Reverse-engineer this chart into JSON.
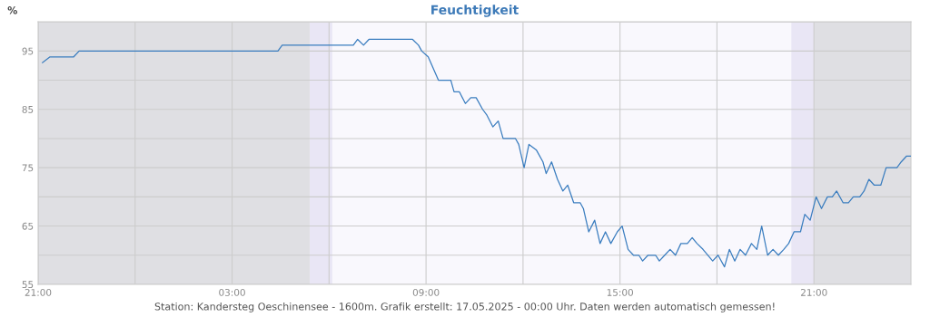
{
  "chart_data": {
    "type": "line",
    "title": "Feuchtigkeit",
    "ylabel": "%",
    "annotations": [
      "Station: Kandersteg Oeschinensee - 1600m. Grafik erstellt: 17.05.2025 - 00:00 Uhr. Daten werden automatisch gemessen!"
    ],
    "series": [
      {
        "color": "#3a7dbf",
        "x": [
          "2025-05-15T21:08",
          "2025-05-15T21:22",
          "2025-05-15T22:06",
          "2025-05-15T22:16",
          "2025-05-16T04:25",
          "2025-05-16T04:33",
          "2025-05-16T06:45",
          "2025-05-16T06:53",
          "2025-05-16T07:04",
          "2025-05-16T07:14",
          "2025-05-16T08:35",
          "2025-05-16T08:46",
          "2025-05-16T08:52",
          "2025-05-16T09:04",
          "2025-05-16T09:23",
          "2025-05-16T09:46",
          "2025-05-16T09:52",
          "2025-05-16T10:02",
          "2025-05-16T10:13",
          "2025-05-16T10:23",
          "2025-05-16T10:33",
          "2025-05-16T10:45",
          "2025-05-16T10:53",
          "2025-05-16T11:04",
          "2025-05-16T11:14",
          "2025-05-16T11:23",
          "2025-05-16T11:46",
          "2025-05-16T11:52",
          "2025-05-16T12:02",
          "2025-05-16T12:11",
          "2025-05-16T12:25",
          "2025-05-16T12:37",
          "2025-05-16T12:43",
          "2025-05-16T12:53",
          "2025-05-16T13:04",
          "2025-05-16T13:14",
          "2025-05-16T13:23",
          "2025-05-16T13:34",
          "2025-05-16T13:46",
          "2025-05-16T13:52",
          "2025-05-16T14:02",
          "2025-05-16T14:13",
          "2025-05-16T14:23",
          "2025-05-16T14:33",
          "2025-05-16T14:43",
          "2025-05-16T14:55",
          "2025-05-16T15:04",
          "2025-05-16T15:15",
          "2025-05-16T15:25",
          "2025-05-16T15:35",
          "2025-05-16T15:42",
          "2025-05-16T15:52",
          "2025-05-16T16:06",
          "2025-05-16T16:13",
          "2025-05-16T16:23",
          "2025-05-16T16:33",
          "2025-05-16T16:43",
          "2025-05-16T16:53",
          "2025-05-16T17:05",
          "2025-05-16T17:14",
          "2025-05-16T17:23",
          "2025-05-16T17:34",
          "2025-05-16T17:52",
          "2025-05-16T18:02",
          "2025-05-16T18:14",
          "2025-05-16T18:23",
          "2025-05-16T18:33",
          "2025-05-16T18:43",
          "2025-05-16T18:53",
          "2025-05-16T19:04",
          "2025-05-16T19:14",
          "2025-05-16T19:23",
          "2025-05-16T19:34",
          "2025-05-16T19:44",
          "2025-05-16T19:54",
          "2025-05-16T20:04",
          "2025-05-16T20:13",
          "2025-05-16T20:23",
          "2025-05-16T20:35",
          "2025-05-16T20:43",
          "2025-05-16T20:53",
          "2025-05-16T21:04",
          "2025-05-16T21:14",
          "2025-05-16T21:25",
          "2025-05-16T21:34",
          "2025-05-16T21:42",
          "2025-05-16T21:54",
          "2025-05-16T22:04",
          "2025-05-16T22:13",
          "2025-05-16T22:25",
          "2025-05-16T22:33",
          "2025-05-16T22:42",
          "2025-05-16T22:52",
          "2025-05-16T23:04",
          "2025-05-16T23:14",
          "2025-05-16T23:34",
          "2025-05-16T23:42",
          "2025-05-16T23:52",
          "2025-05-17T00:00"
        ],
        "values": [
          93,
          94,
          94,
          95,
          95,
          96,
          96,
          97,
          96,
          97,
          97,
          96,
          95,
          94,
          90,
          90,
          88,
          88,
          86,
          87,
          87,
          85,
          84,
          82,
          83,
          80,
          80,
          79,
          75,
          79,
          78,
          76,
          74,
          76,
          73,
          71,
          72,
          69,
          69,
          68,
          64,
          66,
          62,
          64,
          62,
          64,
          65,
          61,
          60,
          60,
          59,
          60,
          60,
          59,
          60,
          61,
          60,
          62,
          62,
          63,
          62,
          61,
          59,
          60,
          58,
          61,
          59,
          61,
          60,
          62,
          61,
          65,
          60,
          61,
          60,
          61,
          62,
          64,
          64,
          67,
          66,
          70,
          68,
          70,
          70,
          71,
          69,
          69,
          70,
          70,
          71,
          73,
          72,
          72,
          75,
          75,
          76,
          77,
          77
        ]
      }
    ],
    "xlim": [
      "2025-05-15T21:00",
      "2025-05-17T00:00"
    ],
    "xticks": [
      {
        "value": "2025-05-15T21:00",
        "label": "21:00"
      },
      {
        "value": "2025-05-16T00:00",
        "label": null
      },
      {
        "value": "2025-05-16T03:00",
        "label": "03:00"
      },
      {
        "value": "2025-05-16T06:00",
        "label": null
      },
      {
        "value": "2025-05-16T09:00",
        "label": "09:00"
      },
      {
        "value": "2025-05-16T12:00",
        "label": null
      },
      {
        "value": "2025-05-16T15:00",
        "label": "15:00"
      },
      {
        "value": "2025-05-16T18:00",
        "label": null
      },
      {
        "value": "2025-05-16T21:00",
        "label": "21:00"
      }
    ],
    "ylim": [
      55,
      100
    ],
    "yticks": [
      55,
      {
        "value": 60,
        "label": null
      },
      65,
      {
        "value": 70,
        "label": null
      },
      75,
      {
        "value": 80,
        "label": null
      },
      85,
      {
        "value": 90,
        "label": null
      },
      95,
      {
        "value": 100,
        "label": null
      }
    ],
    "bands": [
      {
        "axis": "x",
        "from": "2025-05-15T21:00",
        "to": "2025-05-16T05:24",
        "color": "#dfdfe3"
      },
      {
        "axis": "x",
        "from": "2025-05-16T05:24",
        "to": "2025-05-16T06:06",
        "color": "#e9e6f5"
      },
      {
        "axis": "x",
        "from": "2025-05-16T20:18",
        "to": "2025-05-16T21:00",
        "color": "#e9e6f5"
      },
      {
        "axis": "x",
        "from": "2025-05-16T21:00",
        "to": "2025-05-17T00:00",
        "color": "#dfdfe3"
      }
    ],
    "grid": true,
    "marker": "none",
    "line_style": "solid"
  }
}
